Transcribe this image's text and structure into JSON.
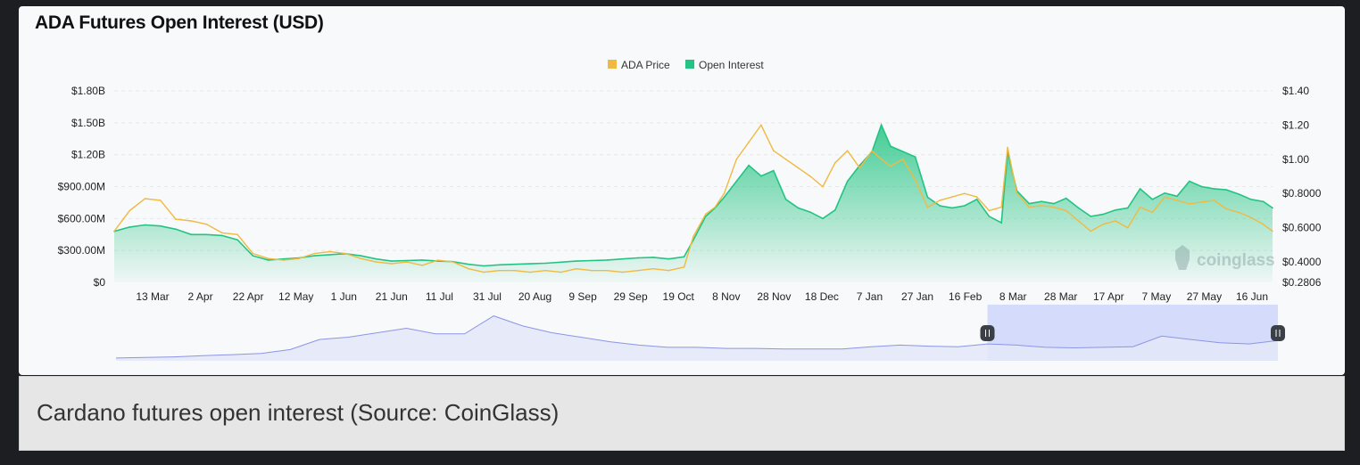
{
  "title": "ADA Futures Open Interest (USD)",
  "caption": "Cardano futures open interest (Source: CoinGlass)",
  "watermark": "coinglass",
  "colors": {
    "price": "#f0b942",
    "open_interest": "#23c483",
    "navigator_line": "#8c95e6",
    "navigator_fill": "#e4e7f8",
    "navigator_selection": "#d5dcfb"
  },
  "chart_data": {
    "type": "area",
    "legend": [
      "ADA Price",
      "Open Interest"
    ],
    "legend_position": "top-center",
    "grid": true,
    "x_ticks": [
      "13 Mar",
      "2 Apr",
      "22 Apr",
      "12 May",
      "1 Jun",
      "21 Jun",
      "11 Jul",
      "31 Jul",
      "20 Aug",
      "9 Sep",
      "29 Sep",
      "19 Oct",
      "8 Nov",
      "28 Nov",
      "18 Dec",
      "7 Jan",
      "27 Jan",
      "16 Feb",
      "8 Mar",
      "28 Mar",
      "17 Apr",
      "7 May",
      "27 May",
      "16 Jun"
    ],
    "y_left": {
      "ticks": [
        "$0",
        "$300.00M",
        "$600.00M",
        "$900.00M",
        "$1.20B",
        "$1.50B",
        "$1.80B"
      ],
      "range": [
        0,
        1800000000
      ]
    },
    "y_right": {
      "ticks": [
        "$0.2806",
        "$0.4000",
        "$0.6000",
        "$0.8000",
        "$1.00",
        "$1.20",
        "$1.40"
      ],
      "range": [
        0.2806,
        1.4
      ]
    },
    "series": [
      {
        "name": "Open Interest",
        "axis": "left",
        "points": [
          [
            0,
            480000000
          ],
          [
            5,
            520000000
          ],
          [
            10,
            540000000
          ],
          [
            15,
            530000000
          ],
          [
            20,
            500000000
          ],
          [
            25,
            450000000
          ],
          [
            30,
            450000000
          ],
          [
            35,
            440000000
          ],
          [
            40,
            400000000
          ],
          [
            45,
            250000000
          ],
          [
            50,
            210000000
          ],
          [
            55,
            220000000
          ],
          [
            60,
            230000000
          ],
          [
            65,
            250000000
          ],
          [
            70,
            260000000
          ],
          [
            75,
            270000000
          ],
          [
            80,
            250000000
          ],
          [
            85,
            220000000
          ],
          [
            90,
            200000000
          ],
          [
            95,
            205000000
          ],
          [
            100,
            210000000
          ],
          [
            105,
            200000000
          ],
          [
            110,
            195000000
          ],
          [
            115,
            170000000
          ],
          [
            120,
            155000000
          ],
          [
            125,
            165000000
          ],
          [
            130,
            170000000
          ],
          [
            135,
            175000000
          ],
          [
            140,
            180000000
          ],
          [
            145,
            190000000
          ],
          [
            150,
            200000000
          ],
          [
            155,
            205000000
          ],
          [
            160,
            210000000
          ],
          [
            165,
            220000000
          ],
          [
            170,
            230000000
          ],
          [
            175,
            235000000
          ],
          [
            180,
            220000000
          ],
          [
            185,
            240000000
          ],
          [
            188,
            400000000
          ],
          [
            192,
            620000000
          ],
          [
            195,
            700000000
          ],
          [
            198,
            800000000
          ],
          [
            202,
            950000000
          ],
          [
            206,
            1100000000
          ],
          [
            210,
            1000000000
          ],
          [
            214,
            1050000000
          ],
          [
            218,
            780000000
          ],
          [
            222,
            700000000
          ],
          [
            226,
            660000000
          ],
          [
            230,
            600000000
          ],
          [
            234,
            680000000
          ],
          [
            238,
            950000000
          ],
          [
            242,
            1100000000
          ],
          [
            246,
            1230000000
          ],
          [
            249,
            1480000000
          ],
          [
            252,
            1280000000
          ],
          [
            256,
            1230000000
          ],
          [
            260,
            1180000000
          ],
          [
            264,
            800000000
          ],
          [
            268,
            720000000
          ],
          [
            272,
            700000000
          ],
          [
            276,
            720000000
          ],
          [
            280,
            780000000
          ],
          [
            284,
            620000000
          ],
          [
            288,
            560000000
          ],
          [
            290,
            1230000000
          ],
          [
            293,
            860000000
          ],
          [
            297,
            740000000
          ],
          [
            301,
            760000000
          ],
          [
            305,
            740000000
          ],
          [
            309,
            790000000
          ],
          [
            313,
            700000000
          ],
          [
            317,
            620000000
          ],
          [
            321,
            640000000
          ],
          [
            325,
            680000000
          ],
          [
            329,
            700000000
          ],
          [
            333,
            880000000
          ],
          [
            337,
            780000000
          ],
          [
            341,
            840000000
          ],
          [
            345,
            810000000
          ],
          [
            349,
            950000000
          ],
          [
            353,
            900000000
          ],
          [
            357,
            880000000
          ],
          [
            361,
            870000000
          ],
          [
            365,
            830000000
          ],
          [
            369,
            780000000
          ],
          [
            373,
            760000000
          ],
          [
            376,
            700000000
          ]
        ]
      },
      {
        "name": "ADA Price",
        "axis": "right",
        "points": [
          [
            0,
            0.58
          ],
          [
            5,
            0.7
          ],
          [
            10,
            0.77
          ],
          [
            15,
            0.76
          ],
          [
            20,
            0.65
          ],
          [
            25,
            0.64
          ],
          [
            30,
            0.62
          ],
          [
            35,
            0.57
          ],
          [
            40,
            0.56
          ],
          [
            45,
            0.45
          ],
          [
            50,
            0.42
          ],
          [
            55,
            0.41
          ],
          [
            60,
            0.42
          ],
          [
            65,
            0.45
          ],
          [
            70,
            0.46
          ],
          [
            75,
            0.45
          ],
          [
            80,
            0.42
          ],
          [
            85,
            0.4
          ],
          [
            90,
            0.39
          ],
          [
            95,
            0.4
          ],
          [
            100,
            0.38
          ],
          [
            105,
            0.41
          ],
          [
            110,
            0.4
          ],
          [
            115,
            0.36
          ],
          [
            120,
            0.34
          ],
          [
            125,
            0.35
          ],
          [
            130,
            0.35
          ],
          [
            135,
            0.34
          ],
          [
            140,
            0.35
          ],
          [
            145,
            0.34
          ],
          [
            150,
            0.36
          ],
          [
            155,
            0.35
          ],
          [
            160,
            0.35
          ],
          [
            165,
            0.34
          ],
          [
            170,
            0.35
          ],
          [
            175,
            0.36
          ],
          [
            180,
            0.35
          ],
          [
            185,
            0.37
          ],
          [
            188,
            0.55
          ],
          [
            192,
            0.68
          ],
          [
            195,
            0.72
          ],
          [
            198,
            0.8
          ],
          [
            202,
            1.0
          ],
          [
            206,
            1.1
          ],
          [
            210,
            1.2
          ],
          [
            214,
            1.05
          ],
          [
            218,
            1.0
          ],
          [
            222,
            0.95
          ],
          [
            226,
            0.9
          ],
          [
            230,
            0.84
          ],
          [
            234,
            0.98
          ],
          [
            238,
            1.05
          ],
          [
            242,
            0.95
          ],
          [
            246,
            1.05
          ],
          [
            249,
            1.0
          ],
          [
            252,
            0.96
          ],
          [
            256,
            1.0
          ],
          [
            260,
            0.88
          ],
          [
            264,
            0.72
          ],
          [
            268,
            0.76
          ],
          [
            272,
            0.78
          ],
          [
            276,
            0.8
          ],
          [
            280,
            0.78
          ],
          [
            284,
            0.7
          ],
          [
            288,
            0.72
          ],
          [
            290,
            1.07
          ],
          [
            293,
            0.8
          ],
          [
            297,
            0.72
          ],
          [
            301,
            0.73
          ],
          [
            305,
            0.72
          ],
          [
            309,
            0.7
          ],
          [
            313,
            0.64
          ],
          [
            317,
            0.58
          ],
          [
            321,
            0.62
          ],
          [
            325,
            0.64
          ],
          [
            329,
            0.6
          ],
          [
            333,
            0.72
          ],
          [
            337,
            0.69
          ],
          [
            341,
            0.78
          ],
          [
            345,
            0.76
          ],
          [
            349,
            0.74
          ],
          [
            353,
            0.75
          ],
          [
            357,
            0.76
          ],
          [
            361,
            0.71
          ],
          [
            365,
            0.69
          ],
          [
            369,
            0.66
          ],
          [
            373,
            0.62
          ],
          [
            376,
            0.58
          ]
        ]
      }
    ],
    "navigator": {
      "selection": [
        0.75,
        1.0
      ],
      "points": [
        [
          0,
          0.05
        ],
        [
          5,
          0.06
        ],
        [
          10,
          0.07
        ],
        [
          15,
          0.09
        ],
        [
          20,
          0.11
        ],
        [
          25,
          0.13
        ],
        [
          30,
          0.2
        ],
        [
          35,
          0.38
        ],
        [
          40,
          0.42
        ],
        [
          45,
          0.5
        ],
        [
          50,
          0.58
        ],
        [
          55,
          0.48
        ],
        [
          60,
          0.48
        ],
        [
          65,
          0.8
        ],
        [
          70,
          0.62
        ],
        [
          75,
          0.5
        ],
        [
          80,
          0.42
        ],
        [
          85,
          0.34
        ],
        [
          90,
          0.28
        ],
        [
          95,
          0.24
        ],
        [
          100,
          0.24
        ],
        [
          105,
          0.22
        ],
        [
          110,
          0.22
        ],
        [
          115,
          0.21
        ],
        [
          120,
          0.21
        ],
        [
          125,
          0.21
        ],
        [
          130,
          0.25
        ],
        [
          135,
          0.28
        ],
        [
          140,
          0.26
        ],
        [
          145,
          0.25
        ],
        [
          150,
          0.3
        ],
        [
          155,
          0.28
        ],
        [
          160,
          0.24
        ],
        [
          165,
          0.23
        ],
        [
          170,
          0.24
        ],
        [
          175,
          0.25
        ],
        [
          180,
          0.44
        ],
        [
          185,
          0.38
        ],
        [
          190,
          0.32
        ],
        [
          195,
          0.3
        ],
        [
          200,
          0.36
        ]
      ]
    }
  }
}
